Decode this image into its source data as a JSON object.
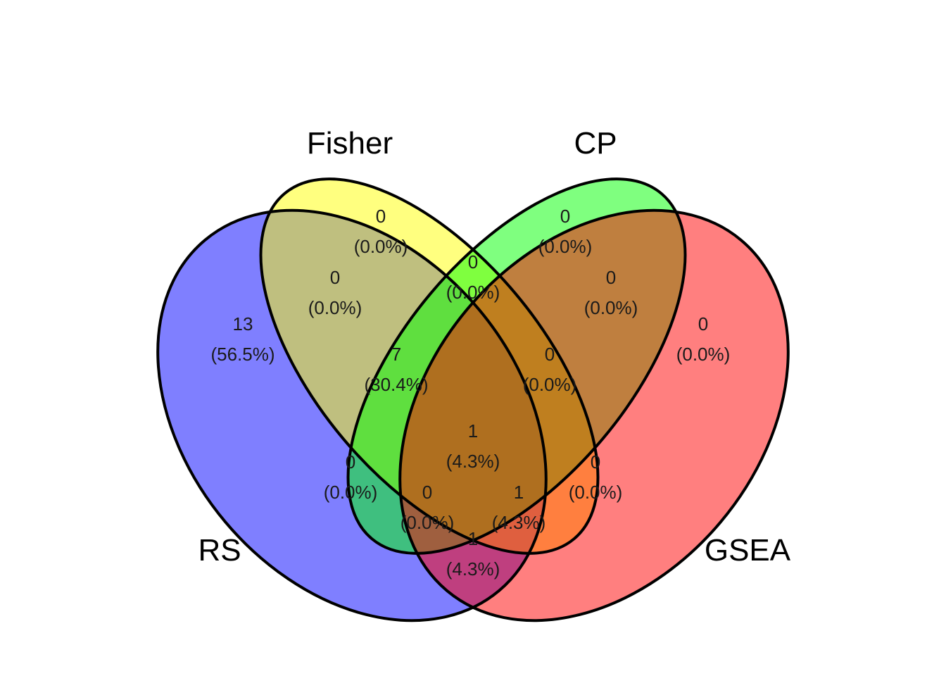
{
  "sets": [
    {
      "key": "RS",
      "label": "RS",
      "color": "#0000ff"
    },
    {
      "key": "Fisher",
      "label": "Fisher",
      "color": "#ffff00"
    },
    {
      "key": "CP",
      "label": "CP",
      "color": "#00ff00"
    },
    {
      "key": "GSEA",
      "label": "GSEA",
      "color": "#ff0000"
    }
  ],
  "fill_opacity": 0.5,
  "regions": [
    {
      "sets": "RS",
      "count": "13",
      "percent": "(56.5%)"
    },
    {
      "sets": "Fisher",
      "count": "0",
      "percent": "(0.0%)"
    },
    {
      "sets": "CP",
      "count": "0",
      "percent": "(0.0%)"
    },
    {
      "sets": "GSEA",
      "count": "0",
      "percent": "(0.0%)"
    },
    {
      "sets": "RS+Fisher",
      "count": "0",
      "percent": "(0.0%)"
    },
    {
      "sets": "Fisher+CP",
      "count": "0",
      "percent": "(0.0%)"
    },
    {
      "sets": "CP+GSEA",
      "count": "0",
      "percent": "(0.0%)"
    },
    {
      "sets": "RS+Fisher+CP",
      "count": "7",
      "percent": "(30.4%)"
    },
    {
      "sets": "Fisher+CP+GSEA",
      "count": "0",
      "percent": "(0.0%)"
    },
    {
      "sets": "RS+CP",
      "count": "0",
      "percent": "(0.0%)"
    },
    {
      "sets": "Fisher+GSEA",
      "count": "0",
      "percent": "(0.0%)"
    },
    {
      "sets": "RS+Fisher+CP+GSEA",
      "count": "1",
      "percent": "(4.3%)"
    },
    {
      "sets": "RS+CP+GSEA",
      "count": "0",
      "percent": "(0.0%)"
    },
    {
      "sets": "RS+Fisher+GSEA",
      "count": "1",
      "percent": "(4.3%)"
    },
    {
      "sets": "RS+GSEA",
      "count": "1",
      "percent": "(4.3%)"
    }
  ]
}
